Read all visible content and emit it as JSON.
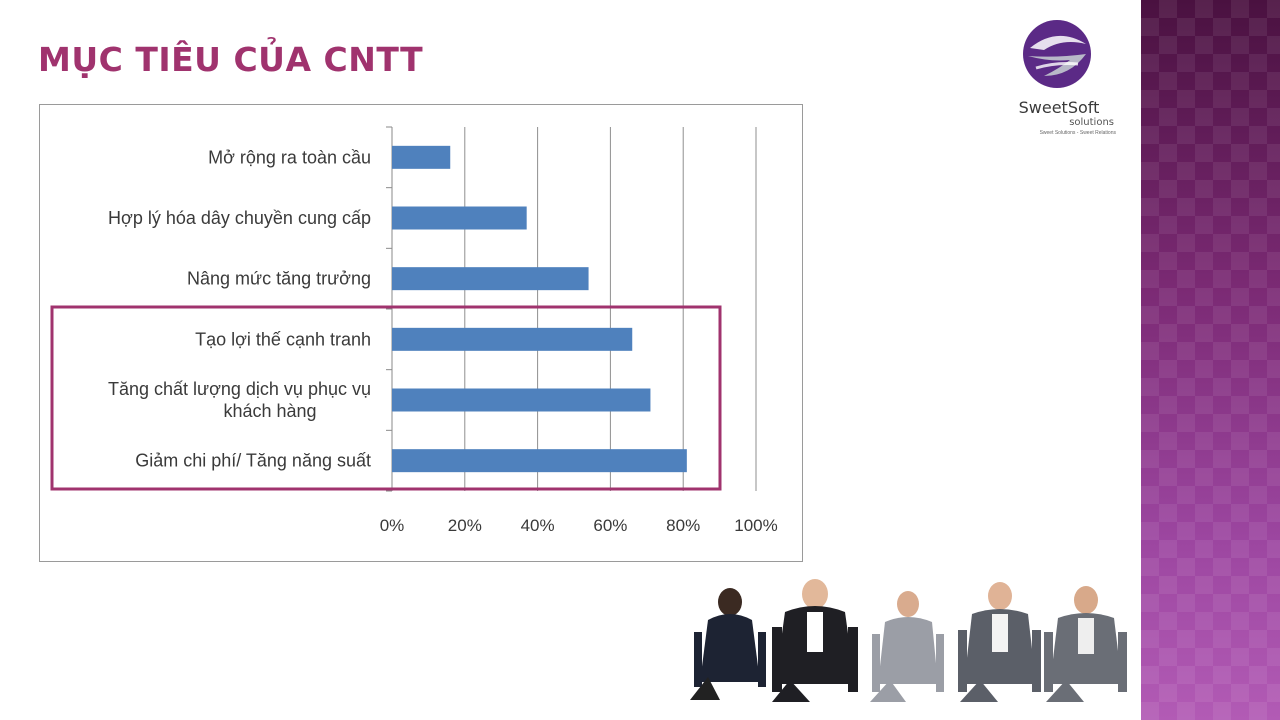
{
  "slide": {
    "title": "MỤC TIÊU CỦA CNTT",
    "title_color": "#a0336e"
  },
  "logo": {
    "name": "SweetSoft",
    "sub": "solutions",
    "tagline": "Sweet Solutions - Sweet Relations",
    "colors": {
      "purple": "#5b2a86",
      "gray": "#9a9a9a"
    }
  },
  "highlight_box_color": "#a0336e",
  "chart_data": {
    "type": "bar",
    "orientation": "horizontal",
    "categories": [
      "Mở rộng ra toàn cầu",
      "Hợp lý hóa dây chuyền cung cấp",
      "Nâng mức tăng trưởng",
      "Tạo lợi thế cạnh tranh",
      "Tăng chất lượng dịch vụ phục vụ khách hàng",
      "Giảm chi phí/ Tăng năng suất"
    ],
    "category_lines": [
      [
        "Mở rộng ra toàn cầu"
      ],
      [
        "Hợp lý hóa dây chuyền cung cấp"
      ],
      [
        "Nâng mức tăng trưởng"
      ],
      [
        "Tạo lợi thế cạnh tranh"
      ],
      [
        "Tăng chất lượng dịch vụ phục vụ",
        "khách hàng"
      ],
      [
        "Giảm chi phí/ Tăng năng suất"
      ]
    ],
    "values": [
      16,
      37,
      54,
      66,
      71,
      81
    ],
    "xlim": [
      0,
      100
    ],
    "xticks": [
      "0%",
      "20%",
      "40%",
      "60%",
      "80%",
      "100%"
    ],
    "bar_color": "#4f81bd",
    "grid": "vertical",
    "highlighted_categories": [
      3,
      4,
      5
    ]
  },
  "photo": {
    "icon": "business-people-starting-line-image"
  }
}
